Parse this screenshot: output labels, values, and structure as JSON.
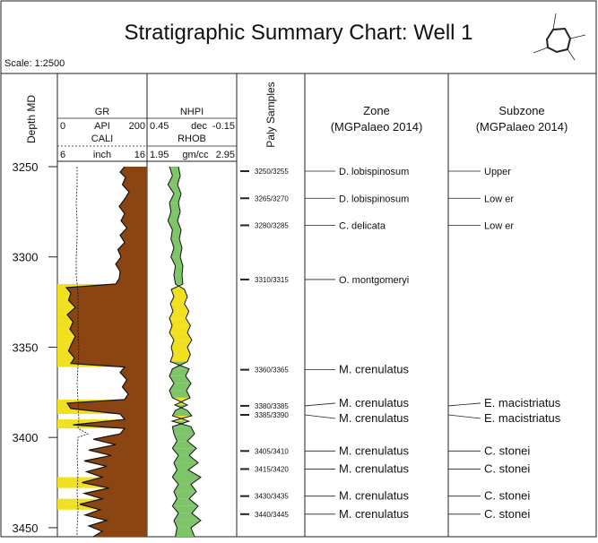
{
  "title": "Stratigraphic Summary Chart: Well 1",
  "scale_label": "Scale: 1:2500",
  "headers": {
    "depth": "Depth MD",
    "gr": {
      "name": "GR",
      "min": "0",
      "unit": "API",
      "max": "200"
    },
    "cali": {
      "name": "CALI",
      "min": "6",
      "unit": "inch",
      "max": "16"
    },
    "nphi": {
      "name": "NHPI",
      "min": "0.45",
      "unit": "dec",
      "max": "-0.15"
    },
    "rhob": {
      "name": "RHOB",
      "min": "1.95",
      "unit": "gm/cc",
      "max": "2.95"
    },
    "paly": "Paly Samples",
    "zone_title": "Zone",
    "zone_sub": "(MGPalaeo 2014)",
    "subzone_title": "Subzone",
    "subzone_sub": "(MGPalaeo 2014)"
  },
  "colors": {
    "shale": "#8b4513",
    "sand": "#f0e020",
    "porosity_fill": "#7ec468",
    "line": "#111111",
    "frame": "#222222"
  },
  "chart_data": {
    "type": "line",
    "y_axis": {
      "label": "Depth MD",
      "range": [
        3250,
        3455
      ],
      "ticks": [
        3250,
        3300,
        3350,
        3400,
        3450
      ],
      "inverted": true
    },
    "samples": [
      {
        "label": "3250/3255",
        "depth": 3252.5,
        "zone": "D. lobispinosum",
        "subzone": "Upper"
      },
      {
        "label": "3265/3270",
        "depth": 3267.5,
        "zone": "D. lobispinosum",
        "subzone": "Low er"
      },
      {
        "label": "3280/3285",
        "depth": 3282.5,
        "zone": "C. delicata",
        "subzone": "Low er"
      },
      {
        "label": "3310/3315",
        "depth": 3312.5,
        "zone": "O. montgomeryi",
        "subzone": ""
      },
      {
        "label": "3360/3365",
        "depth": 3362.5,
        "zone": "M. crenulatus",
        "subzone": ""
      },
      {
        "label": "3380/3385",
        "depth": 3382.5,
        "zone": "M. crenulatus",
        "subzone": "E. macistriatus"
      },
      {
        "label": "3385/3390",
        "depth": 3387.5,
        "zone": "M. crenulatus",
        "subzone": "E. macistriatus"
      },
      {
        "label": "3405/3410",
        "depth": 3407.5,
        "zone": "M. crenulatus",
        "subzone": "C. stonei"
      },
      {
        "label": "3415/3420",
        "depth": 3417.5,
        "zone": "M. crenulatus",
        "subzone": "C. stonei"
      },
      {
        "label": "3430/3435",
        "depth": 3432.5,
        "zone": "M. crenulatus",
        "subzone": "C. stonei"
      },
      {
        "label": "3440/3445",
        "depth": 3442.5,
        "zone": "M. crenulatus",
        "subzone": "C. stonei"
      }
    ],
    "gr_log": [
      [
        3250,
        150
      ],
      [
        3253,
        140
      ],
      [
        3256,
        152
      ],
      [
        3260,
        145
      ],
      [
        3264,
        160
      ],
      [
        3268,
        150
      ],
      [
        3272,
        138
      ],
      [
        3276,
        150
      ],
      [
        3280,
        142
      ],
      [
        3284,
        155
      ],
      [
        3288,
        140
      ],
      [
        3292,
        150
      ],
      [
        3296,
        135
      ],
      [
        3300,
        142
      ],
      [
        3304,
        130
      ],
      [
        3308,
        140
      ],
      [
        3312,
        138
      ],
      [
        3315,
        130
      ],
      [
        3317,
        20
      ],
      [
        3320,
        30
      ],
      [
        3324,
        25
      ],
      [
        3328,
        40
      ],
      [
        3332,
        22
      ],
      [
        3336,
        35
      ],
      [
        3340,
        28
      ],
      [
        3344,
        40
      ],
      [
        3348,
        32
      ],
      [
        3352,
        25
      ],
      [
        3356,
        38
      ],
      [
        3359,
        30
      ],
      [
        3361,
        150
      ],
      [
        3364,
        140
      ],
      [
        3368,
        155
      ],
      [
        3372,
        145
      ],
      [
        3376,
        158
      ],
      [
        3379,
        150
      ],
      [
        3381,
        22
      ],
      [
        3384,
        30
      ],
      [
        3387,
        140
      ],
      [
        3390,
        150
      ],
      [
        3393,
        35
      ],
      [
        3395,
        150
      ],
      [
        3398,
        140
      ],
      [
        3401,
        80
      ],
      [
        3404,
        130
      ],
      [
        3407,
        70
      ],
      [
        3410,
        120
      ],
      [
        3413,
        60
      ],
      [
        3416,
        110
      ],
      [
        3419,
        65
      ],
      [
        3422,
        100
      ],
      [
        3425,
        55
      ],
      [
        3428,
        115
      ],
      [
        3431,
        60
      ],
      [
        3434,
        100
      ],
      [
        3437,
        50
      ],
      [
        3440,
        95
      ],
      [
        3443,
        62
      ],
      [
        3446,
        110
      ],
      [
        3449,
        70
      ],
      [
        3452,
        100
      ],
      [
        3455,
        80
      ]
    ],
    "cali_log": [
      [
        3250,
        8.2
      ],
      [
        3260,
        8.2
      ],
      [
        3270,
        8.1
      ],
      [
        3280,
        8.2
      ],
      [
        3290,
        8.2
      ],
      [
        3300,
        8.1
      ],
      [
        3310,
        8.1
      ],
      [
        3320,
        8.3
      ],
      [
        3330,
        8.3
      ],
      [
        3340,
        8.3
      ],
      [
        3350,
        8.4
      ],
      [
        3360,
        8.3
      ],
      [
        3370,
        8.2
      ],
      [
        3380,
        8.3
      ],
      [
        3390,
        8.4
      ],
      [
        3395,
        8.3
      ],
      [
        3398,
        9.4
      ],
      [
        3400,
        8.3
      ],
      [
        3410,
        8.2
      ],
      [
        3420,
        8.3
      ],
      [
        3430,
        8.2
      ],
      [
        3440,
        8.3
      ],
      [
        3450,
        8.2
      ],
      [
        3455,
        8.2
      ]
    ],
    "nphi_log": [
      [
        3250,
        0.3
      ],
      [
        3255,
        0.28
      ],
      [
        3260,
        0.31
      ],
      [
        3265,
        0.27
      ],
      [
        3270,
        0.3
      ],
      [
        3275,
        0.29
      ],
      [
        3280,
        0.31
      ],
      [
        3285,
        0.28
      ],
      [
        3290,
        0.29
      ],
      [
        3295,
        0.27
      ],
      [
        3300,
        0.29
      ],
      [
        3305,
        0.26
      ],
      [
        3310,
        0.27
      ],
      [
        3315,
        0.26
      ],
      [
        3318,
        0.2
      ],
      [
        3322,
        0.18
      ],
      [
        3326,
        0.2
      ],
      [
        3330,
        0.17
      ],
      [
        3334,
        0.19
      ],
      [
        3338,
        0.16
      ],
      [
        3342,
        0.18
      ],
      [
        3346,
        0.15
      ],
      [
        3350,
        0.18
      ],
      [
        3354,
        0.16
      ],
      [
        3358,
        0.18
      ],
      [
        3362,
        0.28
      ],
      [
        3366,
        0.3
      ],
      [
        3370,
        0.27
      ],
      [
        3374,
        0.3
      ],
      [
        3378,
        0.28
      ],
      [
        3382,
        0.18
      ],
      [
        3385,
        0.26
      ],
      [
        3388,
        0.28
      ],
      [
        3391,
        0.17
      ],
      [
        3394,
        0.28
      ],
      [
        3398,
        0.27
      ],
      [
        3402,
        0.25
      ],
      [
        3406,
        0.28
      ],
      [
        3410,
        0.24
      ],
      [
        3414,
        0.27
      ],
      [
        3418,
        0.25
      ],
      [
        3422,
        0.28
      ],
      [
        3426,
        0.24
      ],
      [
        3430,
        0.27
      ],
      [
        3434,
        0.25
      ],
      [
        3438,
        0.28
      ],
      [
        3442,
        0.24
      ],
      [
        3446,
        0.27
      ],
      [
        3450,
        0.25
      ],
      [
        3455,
        0.26
      ]
    ],
    "rhob_log": [
      [
        3250,
        2.3
      ],
      [
        3255,
        2.32
      ],
      [
        3260,
        2.29
      ],
      [
        3265,
        2.33
      ],
      [
        3270,
        2.3
      ],
      [
        3275,
        2.32
      ],
      [
        3280,
        2.29
      ],
      [
        3285,
        2.33
      ],
      [
        3290,
        2.31
      ],
      [
        3295,
        2.34
      ],
      [
        3300,
        2.32
      ],
      [
        3305,
        2.35
      ],
      [
        3310,
        2.34
      ],
      [
        3315,
        2.35
      ],
      [
        3318,
        2.22
      ],
      [
        3322,
        2.25
      ],
      [
        3326,
        2.21
      ],
      [
        3330,
        2.24
      ],
      [
        3334,
        2.2
      ],
      [
        3338,
        2.23
      ],
      [
        3342,
        2.2
      ],
      [
        3346,
        2.25
      ],
      [
        3350,
        2.22
      ],
      [
        3354,
        2.24
      ],
      [
        3358,
        2.21
      ],
      [
        3362,
        2.42
      ],
      [
        3366,
        2.38
      ],
      [
        3370,
        2.44
      ],
      [
        3374,
        2.39
      ],
      [
        3378,
        2.43
      ],
      [
        3382,
        2.26
      ],
      [
        3385,
        2.4
      ],
      [
        3388,
        2.45
      ],
      [
        3391,
        2.23
      ],
      [
        3394,
        2.44
      ],
      [
        3398,
        2.48
      ],
      [
        3402,
        2.4
      ],
      [
        3406,
        2.5
      ],
      [
        3410,
        2.42
      ],
      [
        3414,
        2.52
      ],
      [
        3418,
        2.41
      ],
      [
        3422,
        2.55
      ],
      [
        3426,
        2.44
      ],
      [
        3430,
        2.5
      ],
      [
        3434,
        2.42
      ],
      [
        3438,
        2.52
      ],
      [
        3442,
        2.45
      ],
      [
        3446,
        2.55
      ],
      [
        3450,
        2.44
      ],
      [
        3455,
        2.48
      ]
    ]
  }
}
